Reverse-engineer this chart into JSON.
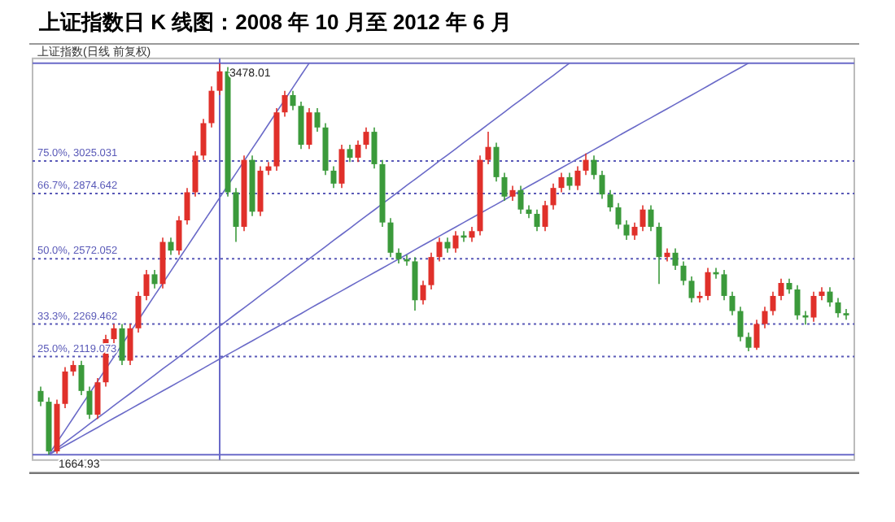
{
  "chart_data": {
    "type": "candlestick",
    "title": "上证指数日 K 线图：2008 年 10 月至 2012 年 6 月",
    "subtitle": "上证指数(日线 前复权)",
    "categories": [
      null,
      null,
      null,
      null,
      null,
      null,
      null,
      null,
      null,
      null,
      null,
      null,
      null,
      null,
      null,
      null,
      null,
      null,
      null,
      null,
      null,
      null,
      null,
      null,
      null,
      null,
      null,
      null,
      null,
      null,
      null,
      null,
      null,
      null,
      null,
      null,
      null,
      null,
      null,
      null,
      null,
      null,
      null,
      null,
      null,
      null,
      null,
      null,
      null,
      null,
      null,
      null,
      null,
      null,
      null,
      null,
      null,
      null,
      null,
      null,
      null,
      null,
      null,
      null,
      null,
      null,
      null,
      null,
      null,
      null,
      null,
      null,
      null,
      null,
      null,
      null,
      null,
      null,
      null,
      null,
      null,
      null,
      null,
      null,
      null,
      null,
      null,
      null,
      null,
      null,
      null,
      null,
      null,
      null,
      null,
      null,
      null,
      null,
      null,
      null
    ],
    "ohlc": [
      [
        1960,
        1980,
        1890,
        1910
      ],
      [
        1910,
        1930,
        1664.93,
        1680
      ],
      [
        1680,
        1920,
        1670,
        1900
      ],
      [
        1900,
        2070,
        1880,
        2050
      ],
      [
        2050,
        2100,
        2030,
        2080
      ],
      [
        2080,
        2100,
        1940,
        1960
      ],
      [
        1960,
        1980,
        1830,
        1850
      ],
      [
        1850,
        2020,
        1830,
        2000
      ],
      [
        2000,
        2220,
        1980,
        2200
      ],
      [
        2200,
        2270,
        2180,
        2250
      ],
      [
        2250,
        2270,
        2080,
        2100
      ],
      [
        2100,
        2270,
        2080,
        2250
      ],
      [
        2250,
        2420,
        2230,
        2400
      ],
      [
        2400,
        2520,
        2380,
        2500
      ],
      [
        2500,
        2520,
        2435,
        2455
      ],
      [
        2455,
        2670,
        2435,
        2650
      ],
      [
        2650,
        2670,
        2590,
        2610
      ],
      [
        2610,
        2770,
        2590,
        2750
      ],
      [
        2750,
        2900,
        2730,
        2880
      ],
      [
        2880,
        3070,
        2860,
        3050
      ],
      [
        3050,
        3220,
        3030,
        3200
      ],
      [
        3200,
        3370,
        3180,
        3350
      ],
      [
        3350,
        3478.01,
        3330,
        3440
      ],
      [
        3440,
        3460,
        2860,
        2880
      ],
      [
        2880,
        2900,
        2650,
        2720
      ],
      [
        2720,
        3050,
        2700,
        3030
      ],
      [
        3030,
        3050,
        2770,
        2790
      ],
      [
        2790,
        3000,
        2770,
        2980
      ],
      [
        2980,
        3020,
        2960,
        3000
      ],
      [
        3000,
        3270,
        2980,
        3250
      ],
      [
        3250,
        3350,
        3230,
        3330
      ],
      [
        3330,
        3350,
        3260,
        3280
      ],
      [
        3280,
        3300,
        3080,
        3100
      ],
      [
        3100,
        3270,
        3080,
        3250
      ],
      [
        3250,
        3270,
        3160,
        3180
      ],
      [
        3180,
        3200,
        2960,
        2980
      ],
      [
        2980,
        3000,
        2900,
        2920
      ],
      [
        2920,
        3100,
        2900,
        3080
      ],
      [
        3080,
        3100,
        3020,
        3040
      ],
      [
        3040,
        3120,
        3020,
        3100
      ],
      [
        3100,
        3180,
        3080,
        3160
      ],
      [
        3160,
        3180,
        2990,
        3010
      ],
      [
        3010,
        3030,
        2720,
        2740
      ],
      [
        2740,
        2760,
        2580,
        2600
      ],
      [
        2600,
        2620,
        2550,
        2570
      ],
      [
        2570,
        2590,
        2540,
        2560
      ],
      [
        2560,
        2580,
        2332,
        2380
      ],
      [
        2380,
        2470,
        2360,
        2450
      ],
      [
        2450,
        2600,
        2430,
        2580
      ],
      [
        2580,
        2670,
        2560,
        2650
      ],
      [
        2650,
        2670,
        2600,
        2620
      ],
      [
        2620,
        2700,
        2600,
        2680
      ],
      [
        2680,
        2700,
        2650,
        2670
      ],
      [
        2670,
        2720,
        2650,
        2700
      ],
      [
        2700,
        3050,
        2680,
        3030
      ],
      [
        3030,
        3160,
        3010,
        3090
      ],
      [
        3090,
        3110,
        2930,
        2950
      ],
      [
        2950,
        2970,
        2840,
        2860
      ],
      [
        2860,
        2910,
        2840,
        2890
      ],
      [
        2890,
        2910,
        2780,
        2800
      ],
      [
        2800,
        2820,
        2760,
        2780
      ],
      [
        2780,
        2800,
        2700,
        2720
      ],
      [
        2720,
        2840,
        2700,
        2820
      ],
      [
        2820,
        2920,
        2800,
        2900
      ],
      [
        2900,
        2970,
        2880,
        2950
      ],
      [
        2950,
        2970,
        2890,
        2910
      ],
      [
        2910,
        3000,
        2890,
        2980
      ],
      [
        2980,
        3060,
        2960,
        3030
      ],
      [
        3030,
        3050,
        2940,
        2960
      ],
      [
        2960,
        2980,
        2850,
        2870
      ],
      [
        2870,
        2890,
        2790,
        2810
      ],
      [
        2810,
        2830,
        2710,
        2730
      ],
      [
        2730,
        2750,
        2660,
        2680
      ],
      [
        2680,
        2740,
        2660,
        2720
      ],
      [
        2720,
        2820,
        2700,
        2800
      ],
      [
        2800,
        2820,
        2700,
        2720
      ],
      [
        2720,
        2740,
        2455,
        2580
      ],
      [
        2580,
        2620,
        2560,
        2600
      ],
      [
        2600,
        2620,
        2520,
        2540
      ],
      [
        2540,
        2560,
        2450,
        2470
      ],
      [
        2470,
        2490,
        2370,
        2390
      ],
      [
        2390,
        2420,
        2370,
        2400
      ],
      [
        2400,
        2530,
        2380,
        2510
      ],
      [
        2510,
        2530,
        2480,
        2500
      ],
      [
        2500,
        2520,
        2380,
        2400
      ],
      [
        2400,
        2420,
        2310,
        2330
      ],
      [
        2330,
        2350,
        2190,
        2210
      ],
      [
        2210,
        2230,
        2144,
        2160
      ],
      [
        2160,
        2290,
        2150,
        2270
      ],
      [
        2270,
        2350,
        2250,
        2330
      ],
      [
        2330,
        2420,
        2310,
        2400
      ],
      [
        2400,
        2480,
        2380,
        2460
      ],
      [
        2460,
        2480,
        2410,
        2430
      ],
      [
        2430,
        2450,
        2290,
        2310
      ],
      [
        2310,
        2330,
        2267,
        2300
      ],
      [
        2300,
        2420,
        2280,
        2400
      ],
      [
        2400,
        2440,
        2380,
        2420
      ],
      [
        2420,
        2440,
        2350,
        2370
      ],
      [
        2370,
        2390,
        2300,
        2320
      ],
      [
        2320,
        2340,
        2290,
        2310
      ]
    ],
    "series": [
      {
        "type": "line",
        "color": "#6a6ac8",
        "values": [
          null,
          1664.93,
          1722,
          1778,
          1835,
          1892,
          1948,
          2005,
          2062,
          2118,
          2175,
          2232,
          2288,
          2345,
          2402,
          2458,
          2515,
          2572,
          2628,
          2685,
          2742,
          2798,
          2855,
          2912,
          2968,
          3025,
          3082,
          3138,
          3195,
          3252,
          3308,
          3365,
          3422,
          3478.01,
          null,
          null,
          null,
          null,
          null,
          null,
          null,
          null,
          null,
          null,
          null,
          null,
          null,
          null,
          null,
          null,
          null,
          null,
          null,
          null,
          null,
          null,
          null,
          null,
          null,
          null,
          null,
          null,
          null,
          null,
          null,
          null,
          null,
          null,
          null,
          null,
          null,
          null,
          null,
          null,
          null,
          null,
          null,
          null,
          null,
          null,
          null,
          null,
          null,
          null,
          null,
          null,
          null,
          null,
          null,
          null,
          null,
          null,
          null,
          null,
          null,
          null,
          null,
          null,
          null,
          null
        ]
      },
      {
        "type": "line",
        "color": "#6a6ac8",
        "values": [
          null,
          1664.93,
          1693,
          1722,
          1750,
          1778,
          1807,
          1835,
          1863,
          1892,
          1920,
          1948,
          1977,
          2005,
          2033,
          2062,
          2090,
          2118,
          2147,
          2175,
          2203,
          2232,
          2260,
          2288,
          2317,
          2345,
          2373,
          2402,
          2430,
          2458,
          2487,
          2515,
          2543,
          2572,
          2600,
          2628,
          2657,
          2685,
          2713,
          2742,
          2770,
          2798,
          2827,
          2855,
          2883,
          2912,
          2940,
          2968,
          2996,
          3025,
          3053,
          3081,
          3110,
          3138,
          3166,
          3195,
          3223,
          3251,
          3280,
          3308,
          3336,
          3365,
          3393,
          3421,
          3450,
          3478.01,
          null,
          null,
          null,
          null,
          null,
          null,
          null,
          null,
          null,
          null,
          null,
          null,
          null,
          null,
          null,
          null,
          null,
          null,
          null,
          null,
          null,
          null,
          null,
          null,
          null,
          null,
          null,
          null,
          null,
          null,
          null,
          null,
          null,
          null
        ]
      },
      {
        "type": "line",
        "color": "#6a6ac8",
        "values": [
          null,
          1664.93,
          1686,
          1707,
          1728,
          1749,
          1770,
          1791,
          1813,
          1834,
          1855,
          1876,
          1897,
          1918,
          1939,
          1960,
          1981,
          2002,
          2023,
          2044,
          2065,
          2087,
          2108,
          2129,
          2150,
          2171,
          2192,
          2213,
          2234,
          2255,
          2276,
          2297,
          2318,
          2340,
          2361,
          2382,
          2403,
          2424,
          2445,
          2466,
          2487,
          2508,
          2529,
          2550,
          2571,
          2592,
          2614,
          2635,
          2656,
          2677,
          2698,
          2719,
          2740,
          2761,
          2782,
          2803,
          2824,
          2845,
          2867,
          2888,
          2909,
          2930,
          2951,
          2972,
          2993,
          3014,
          3035,
          3056,
          3077,
          3098,
          3119,
          3141,
          3162,
          3183,
          3204,
          3225,
          3246,
          3267,
          3288,
          3309,
          3330,
          3351,
          3372,
          3394,
          3415,
          3436,
          3457,
          3478.01,
          null,
          null,
          null,
          null,
          null,
          null,
          null,
          null,
          null,
          null,
          null,
          null
        ]
      }
    ],
    "ylim": [
      1640,
      3500
    ],
    "tick_labels": false,
    "ref_lines": [
      {
        "axis": "y",
        "value": 3478.01,
        "color": "#6a6ac8",
        "line_style": "solid"
      },
      {
        "axis": "y",
        "value": 3025.031,
        "label": "75.0%, 3025.031",
        "color": "#5a5ab8",
        "line_style": "dotted"
      },
      {
        "axis": "y",
        "value": 2874.642,
        "label": "66.7%, 2874.642",
        "color": "#5a5ab8",
        "line_style": "dotted"
      },
      {
        "axis": "y",
        "value": 2572.052,
        "label": "50.0%, 2572.052",
        "color": "#5a5ab8",
        "line_style": "dotted"
      },
      {
        "axis": "y",
        "value": 2269.462,
        "label": "33.3%, 2269.462",
        "color": "#5a5ab8",
        "line_style": "dotted"
      },
      {
        "axis": "y",
        "value": 2119.073,
        "label": "25.0%, 2119.073",
        "color": "#5a5ab8",
        "line_style": "dotted"
      },
      {
        "axis": "y",
        "value": 1664.93,
        "color": "#6a6ac8",
        "line_style": "solid"
      }
    ],
    "annotations": [
      {
        "text": "3478.01",
        "y": 3478.01
      },
      {
        "text": "1664.93",
        "y": 1664.93
      }
    ]
  }
}
